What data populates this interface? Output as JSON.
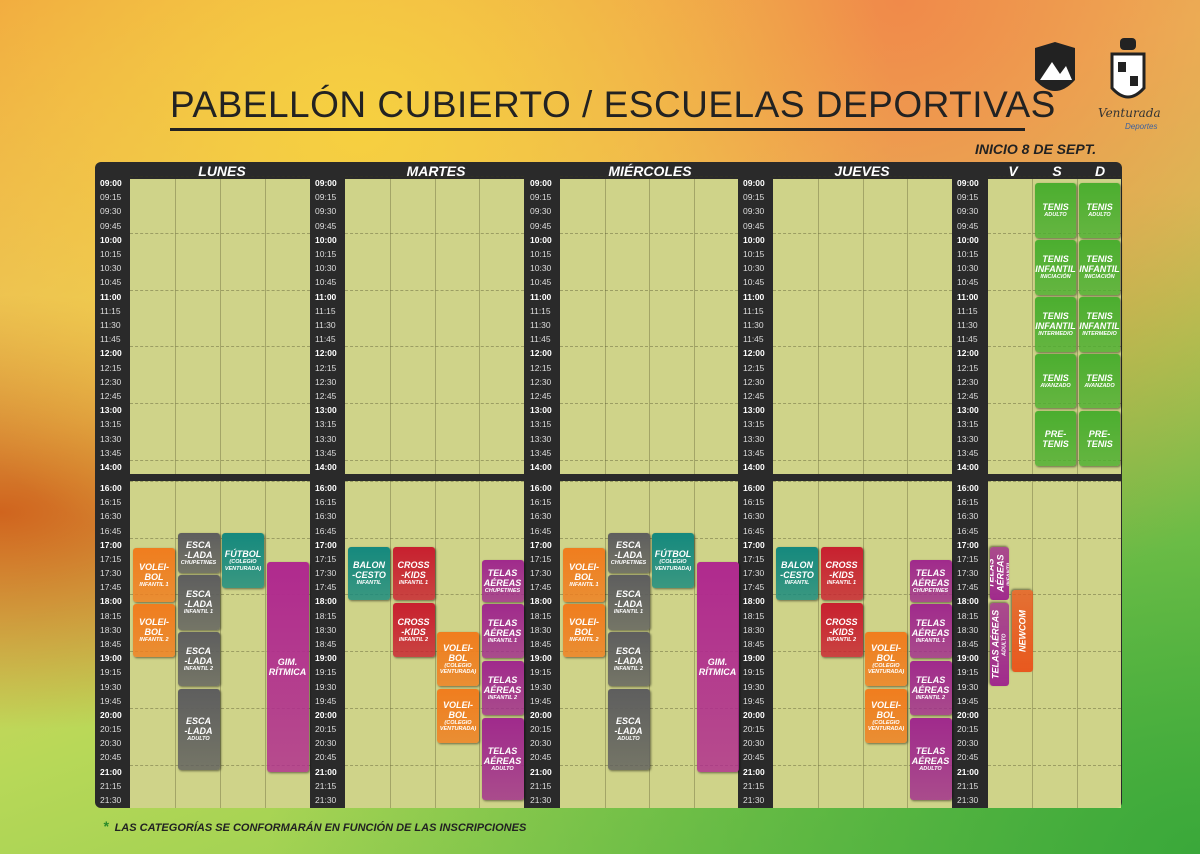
{
  "header": {
    "title": "PABELLÓN CUBIERTO / ESCUELAS DEPORTIVAS",
    "start_note": "INICIO 8 DE SEPT.",
    "brand": "Venturada",
    "brand_sub": "Deportes"
  },
  "schedule": {
    "days": [
      "LUNES",
      "MARTES",
      "MIÉRCOLES",
      "JUEVES",
      "V",
      "S",
      "D"
    ],
    "times": [
      "09:00",
      "09:15",
      "09:30",
      "09:45",
      "10:00",
      "10:15",
      "10:30",
      "10:45",
      "11:00",
      "11:15",
      "11:30",
      "11:45",
      "12:00",
      "12:15",
      "12:30",
      "12:45",
      "13:00",
      "13:15",
      "13:30",
      "13:45",
      "14:00",
      "16:00",
      "16:15",
      "16:30",
      "16:45",
      "17:00",
      "17:15",
      "17:30",
      "17:45",
      "18:00",
      "18:15",
      "18:30",
      "18:45",
      "19:00",
      "19:15",
      "19:30",
      "19:45",
      "20:00",
      "20:15",
      "20:30",
      "20:45",
      "21:00",
      "21:15",
      "21:30"
    ],
    "events": [
      {
        "title": [
          "VOLEI-",
          "BOL"
        ],
        "note": "INFANTIL 1",
        "color": "#f07d1e"
      },
      {
        "title": [
          "VOLEI-",
          "BOL"
        ],
        "note": "INFANTIL 2",
        "color": "#f07d1e"
      },
      {
        "title": [
          "ESCA",
          "-LADA"
        ],
        "note": "CHUPETINES",
        "color": "#5e5e5e"
      },
      {
        "title": [
          "ESCA",
          "-LADA"
        ],
        "note": "INFANTIL 1",
        "color": "#5e5e5e"
      },
      {
        "title": [
          "ESCA",
          "-LADA"
        ],
        "note": "INFANTIL 2",
        "color": "#5e5e5e"
      },
      {
        "title": [
          "ESCA",
          "-LADA"
        ],
        "note": "ADULTO",
        "color": "#5e5e5e"
      },
      {
        "title": [
          "FÚTBOL"
        ],
        "note": "(COLEGIO VENTURADA)",
        "color": "#15897e"
      },
      {
        "title": [
          "GIM.",
          "RÍTMICA"
        ],
        "color": "#b02a8e"
      },
      {
        "title": [
          "BALON",
          "-CESTO"
        ],
        "note": "INFANTIL",
        "color": "#15897e"
      },
      {
        "title": [
          "CROSS",
          "-KIDS"
        ],
        "note": "INFANTIL 1",
        "color": "#c8202f"
      },
      {
        "title": [
          "CROSS",
          "-KIDS"
        ],
        "note": "INFANTIL 2",
        "color": "#c8202f"
      },
      {
        "title": [
          "VOLEI-",
          "BOL"
        ],
        "note": "(COLEGIO VENTURADA)",
        "color": "#f07d1e"
      },
      {
        "title": [
          "VOLEI-",
          "BOL"
        ],
        "note": "(COLEGIO VENTURADA)",
        "color": "#f07d1e"
      },
      {
        "title": [
          "TELAS",
          "AÉREAS"
        ],
        "note": "CHUPETINES",
        "color": "#a02a8c"
      },
      {
        "title": [
          "TELAS",
          "AÉREAS"
        ],
        "note": "INFANTIL 1",
        "color": "#a02a8c"
      },
      {
        "title": [
          "TELAS",
          "AÉREAS"
        ],
        "note": "INFANTIL 2",
        "color": "#a02a8c"
      },
      {
        "title": [
          "TELAS",
          "AÉREAS"
        ],
        "note": "ADULTO",
        "color": "#a02a8c"
      },
      {
        "title": [
          "VOLEI-",
          "BOL"
        ],
        "note": "INFANTIL 1",
        "color": "#f07d1e"
      },
      {
        "title": [
          "VOLEI-",
          "BOL"
        ],
        "note": "INFANTIL 2",
        "color": "#f07d1e"
      },
      {
        "title": [
          "ESCA",
          "-LADA"
        ],
        "note": "CHUPETINES",
        "color": "#5e5e5e"
      },
      {
        "title": [
          "ESCA",
          "-LADA"
        ],
        "note": "INFANTIL 1",
        "color": "#5e5e5e"
      },
      {
        "title": [
          "ESCA",
          "-LADA"
        ],
        "note": "INFANTIL 2",
        "color": "#5e5e5e"
      },
      {
        "title": [
          "ESCA",
          "-LADA"
        ],
        "note": "ADULTO",
        "color": "#5e5e5e"
      },
      {
        "title": [
          "FÚTBOL"
        ],
        "note": "(COLEGIO VENTURADA)",
        "color": "#15897e"
      },
      {
        "title": [
          "GIM.",
          "RÍTMICA"
        ],
        "color": "#b02a8e"
      },
      {
        "title": [
          "BALON",
          "-CESTO"
        ],
        "note": "INFANTIL",
        "color": "#15897e"
      },
      {
        "title": [
          "CROSS",
          "-KIDS"
        ],
        "note": "INFANTIL 1",
        "color": "#c8202f"
      },
      {
        "title": [
          "CROSS",
          "-KIDS"
        ],
        "note": "INFANTIL 2",
        "color": "#c8202f"
      },
      {
        "title": [
          "VOLEI-",
          "BOL"
        ],
        "note": "(COLEGIO VENTURADA)",
        "color": "#f07d1e"
      },
      {
        "title": [
          "VOLEI-",
          "BOL"
        ],
        "note": "(COLEGIO VENTURADA)",
        "color": "#f07d1e"
      },
      {
        "title": [
          "TELAS",
          "AÉREAS"
        ],
        "note": "CHUPETINES",
        "color": "#a02a8c"
      },
      {
        "title": [
          "TELAS",
          "AÉREAS"
        ],
        "note": "INFANTIL 1",
        "color": "#a02a8c"
      },
      {
        "title": [
          "TELAS",
          "AÉREAS"
        ],
        "note": "INFANTIL 2",
        "color": "#a02a8c"
      },
      {
        "title": [
          "TELAS",
          "AÉREAS"
        ],
        "note": "ADULTO",
        "color": "#a02a8c"
      },
      {
        "title": [
          "TELAS AÉREAS"
        ],
        "note": "INFANTIL",
        "color": "#a02a8c"
      },
      {
        "title": [
          "TELAS AÉREAS"
        ],
        "note": "ADULTO",
        "color": "#a02a8c"
      },
      {
        "title": [
          "NEWCOM"
        ],
        "color": "#e8581e"
      },
      {
        "title": [
          "TENIS"
        ],
        "note": "ADULTO",
        "color": "#4bae2f"
      },
      {
        "title": [
          "TENIS",
          "INFANTIL"
        ],
        "note": "INICIACIÓN",
        "color": "#4bae2f"
      },
      {
        "title": [
          "TENIS",
          "INFANTIL"
        ],
        "note": "INTERMEDIO",
        "color": "#4bae2f"
      },
      {
        "title": [
          "TENIS"
        ],
        "note": "AVANZADO",
        "color": "#4bae2f"
      },
      {
        "title": [
          "PRE-",
          "TENIS"
        ],
        "color": "#4bae2f"
      },
      {
        "title": [
          "TENIS"
        ],
        "note": "ADULTO",
        "color": "#4bae2f"
      },
      {
        "title": [
          "TENIS",
          "INFANTIL"
        ],
        "note": "INICIACIÓN",
        "color": "#4bae2f"
      },
      {
        "title": [
          "TENIS",
          "INFANTIL"
        ],
        "note": "INTERMEDIO",
        "color": "#4bae2f"
      },
      {
        "title": [
          "TENIS"
        ],
        "note": "AVANZADO",
        "color": "#4bae2f"
      },
      {
        "title": [
          "PRE-",
          "TENIS"
        ],
        "color": "#4bae2f"
      }
    ]
  },
  "footer": {
    "marker": "*",
    "note": "LAS CATEGORÍAS SE CONFORMARÁN EN FUNCIÓN DE LAS INSCRIPCIONES"
  }
}
